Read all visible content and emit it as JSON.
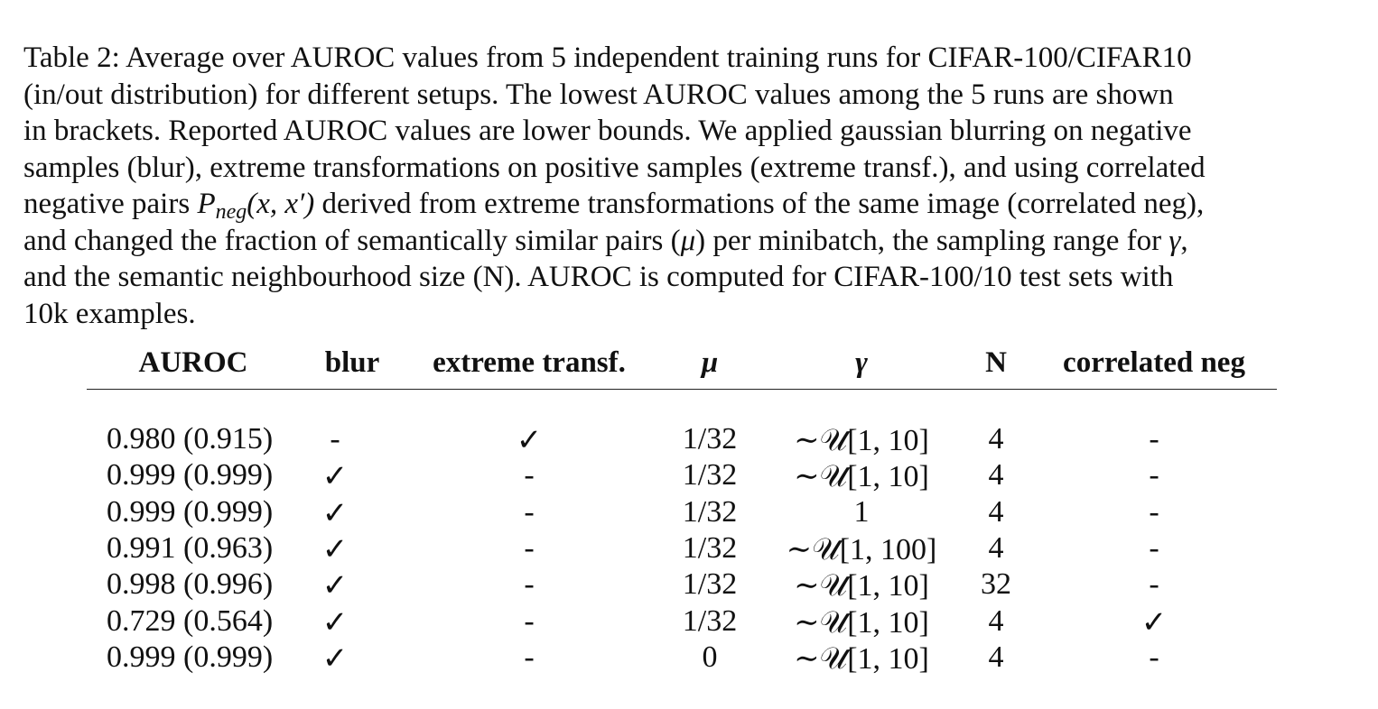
{
  "caption": {
    "line1": "Table 2: Average over AUROC values from 5 independent training runs for CIFAR-100/CIFAR10",
    "line2": "(in/out distribution) for different setups.  The lowest AUROC values among the 5 runs are shown",
    "line3": "in brackets. Reported AUROC values are lower bounds. We applied gaussian blurring on negative",
    "line4": "samples (blur), extreme transformations on positive samples (extreme transf.), and using correlated",
    "line5_pre": "negative pairs ",
    "line5_P": "P",
    "line5_sub": "neg",
    "line5_args": "(x, x′)",
    "line5_post": " derived from extreme transformations of the same image (correlated neg),",
    "line6_pre": "and changed the fraction of semantically similar pairs (",
    "line6_mu": "μ",
    "line6_mid": ") per minibatch, the sampling range for ",
    "line6_gamma": "γ",
    "line6_post": ",",
    "line7": "and the semantic neighbourhood size (N). AUROC is computed for CIFAR-100/10 test sets with",
    "line8": "10k examples."
  },
  "table": {
    "headers": {
      "auroc": "AUROC",
      "blur": "blur",
      "extreme": "extreme transf.",
      "mu": "μ",
      "gamma": "γ",
      "n": "N",
      "corr": "correlated neg"
    },
    "rows": [
      {
        "auroc": "0.980 (0.915)",
        "blur": "-",
        "extreme": "✓",
        "mu": "1/32",
        "gamma": "∼𝒰[1, 10]",
        "n": "4",
        "corr": "-"
      },
      {
        "auroc": "0.999 (0.999)",
        "blur": "✓",
        "extreme": "-",
        "mu": "1/32",
        "gamma": "∼𝒰[1, 10]",
        "n": "4",
        "corr": "-"
      },
      {
        "auroc": "0.999 (0.999)",
        "blur": "✓",
        "extreme": "-",
        "mu": "1/32",
        "gamma": "1",
        "n": "4",
        "corr": "-"
      },
      {
        "auroc": "0.991 (0.963)",
        "blur": "✓",
        "extreme": "-",
        "mu": "1/32",
        "gamma": "∼𝒰[1, 100]",
        "n": "4",
        "corr": "-"
      },
      {
        "auroc": "0.998 (0.996)",
        "blur": "✓",
        "extreme": "-",
        "mu": "1/32",
        "gamma": "∼𝒰[1, 10]",
        "n": "32",
        "corr": "-"
      },
      {
        "auroc": "0.729 (0.564)",
        "blur": "✓",
        "extreme": "-",
        "mu": "1/32",
        "gamma": "∼𝒰[1, 10]",
        "n": "4",
        "corr": "✓"
      },
      {
        "auroc": "0.999 (0.999)",
        "blur": "✓",
        "extreme": "-",
        "mu": "0",
        "gamma": "∼𝒰[1, 10]",
        "n": "4",
        "corr": "-"
      }
    ]
  }
}
